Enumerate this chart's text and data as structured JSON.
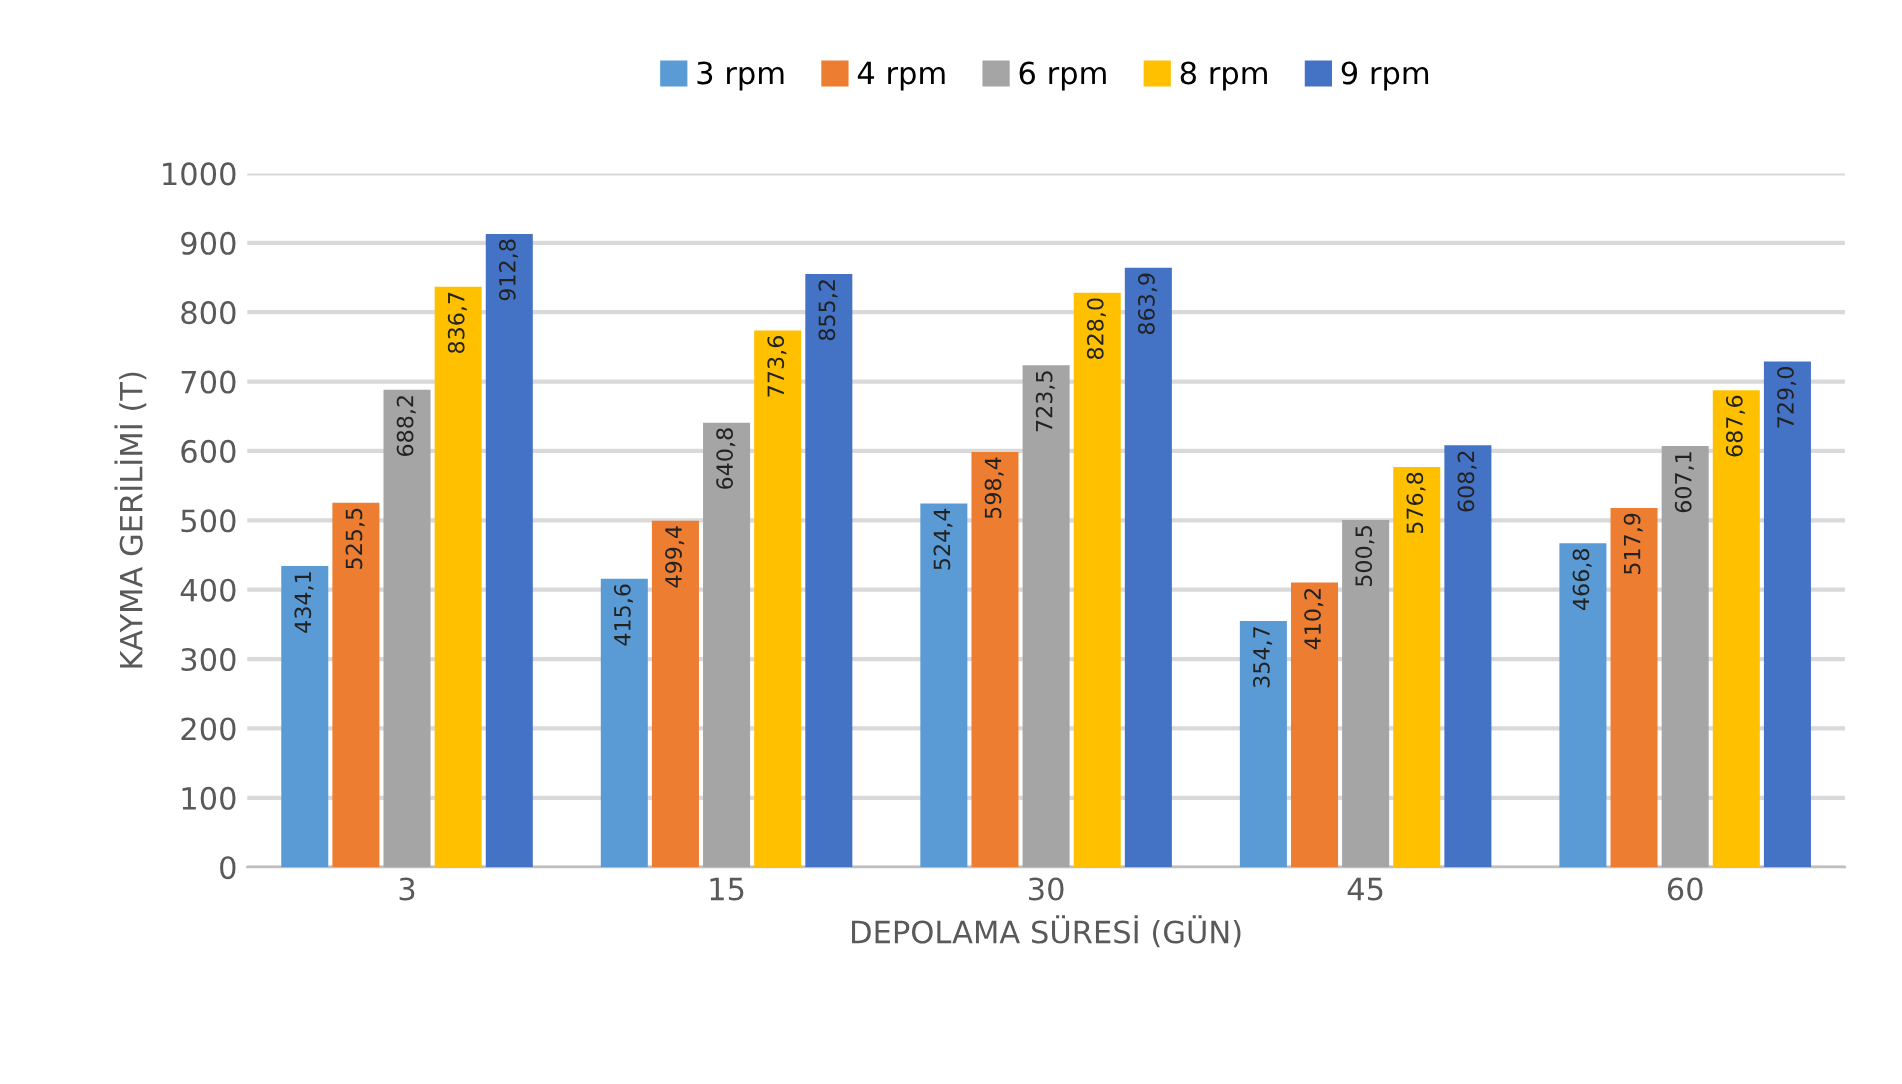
{
  "chart_data": {
    "type": "bar",
    "xlabel": "DEPOLAMA SÜRESİ (GÜN)",
    "ylabel": "KAYMA GERİLİMİ (T)",
    "categories": [
      "3",
      "15",
      "30",
      "45",
      "60"
    ],
    "series": [
      {
        "name": "3 rpm",
        "color": "#5b9bd5",
        "values": [
          434.1,
          415.6,
          524.4,
          354.7,
          466.8
        ],
        "value_labels": [
          "434,1",
          "415,6",
          "524,4",
          "354,7",
          "466,8"
        ]
      },
      {
        "name": "4 rpm",
        "color": "#ed7d31",
        "values": [
          525.5,
          499.4,
          598.4,
          410.2,
          517.9
        ],
        "value_labels": [
          "525,5",
          "499,4",
          "598,4",
          "410,2",
          "517,9"
        ]
      },
      {
        "name": "6 rpm",
        "color": "#a5a5a5",
        "values": [
          688.2,
          640.8,
          723.5,
          500.5,
          607.1
        ],
        "value_labels": [
          "688,2",
          "640,8",
          "723,5",
          "500,5",
          "607,1"
        ]
      },
      {
        "name": "8 rpm",
        "color": "#ffc000",
        "values": [
          836.7,
          773.6,
          828.0,
          576.8,
          687.6
        ],
        "value_labels": [
          "836,7",
          "773,6",
          "828,0",
          "576,8",
          "687,6"
        ]
      },
      {
        "name": "9 rpm",
        "color": "#4472c4",
        "values": [
          912.8,
          855.2,
          863.9,
          608.2,
          729.0
        ],
        "value_labels": [
          "912,8",
          "855,2",
          "863,9",
          "608,2",
          "729,0"
        ]
      }
    ],
    "ylim": [
      0,
      1000
    ],
    "yticks": [
      0,
      100,
      200,
      300,
      400,
      500,
      600,
      700,
      800,
      900,
      1000
    ],
    "grid": "y",
    "legend": "top"
  }
}
